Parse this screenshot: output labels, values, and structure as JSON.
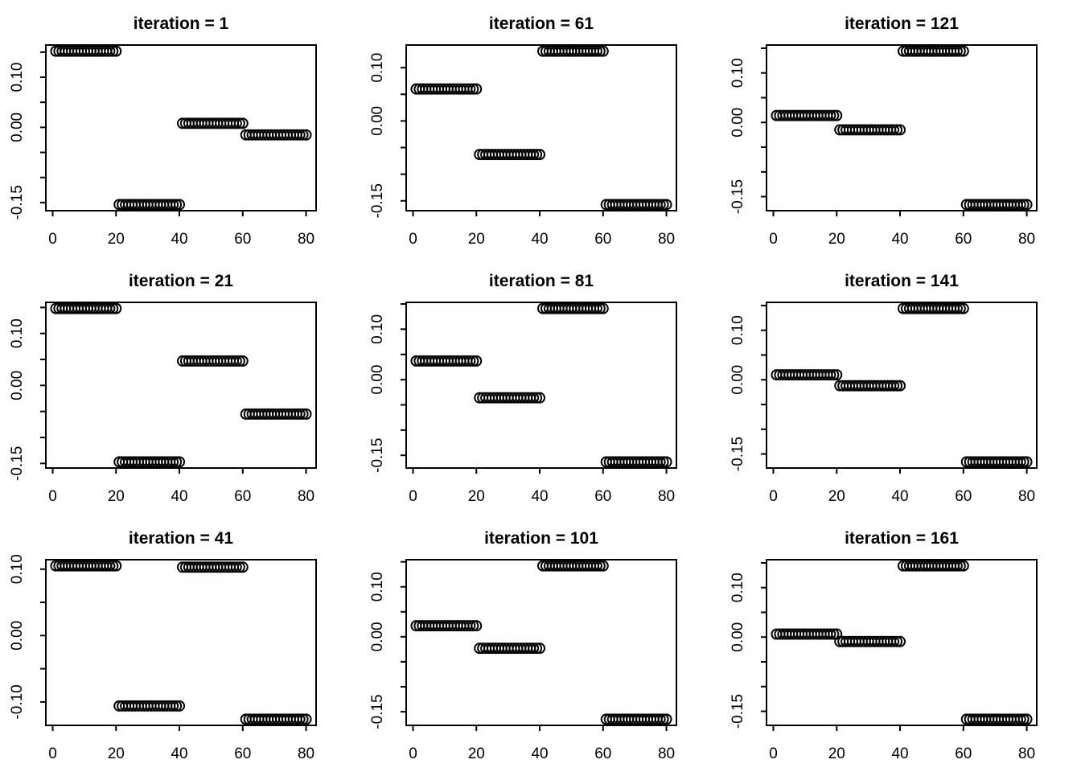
{
  "figure": {
    "background_color": "#ffffff",
    "draw_color": "#000000",
    "marker": "open-circle",
    "grid": {
      "rows": 3,
      "cols": 3
    }
  },
  "chart_data": [
    {
      "type": "scatter",
      "title": "iteration = 1",
      "iteration": 1,
      "xlim": [
        1,
        80
      ],
      "x_ticks": [
        0,
        20,
        40,
        60,
        80
      ],
      "x_tick_labels": [
        "0",
        "20",
        "40",
        "60",
        "80"
      ],
      "y_ticks": [
        0.15,
        0.1,
        0.05,
        0.0,
        -0.05,
        -0.1,
        -0.15
      ],
      "y_tick_labels": [
        "",
        "0.10",
        "",
        "0.00",
        "",
        "",
        "-0.15"
      ],
      "points_per_segment": 20,
      "segments": [
        {
          "x_start": 1,
          "x_end": 20,
          "y": 0.152
        },
        {
          "x_start": 21,
          "x_end": 40,
          "y": -0.154
        },
        {
          "x_start": 41,
          "x_end": 60,
          "y": 0.008
        },
        {
          "x_start": 61,
          "x_end": 80,
          "y": -0.015
        }
      ]
    },
    {
      "type": "scatter",
      "title": "iteration = 61",
      "iteration": 61,
      "xlim": [
        1,
        80
      ],
      "x_ticks": [
        0,
        20,
        40,
        60,
        80
      ],
      "x_tick_labels": [
        "0",
        "20",
        "40",
        "60",
        "80"
      ],
      "y_ticks": [
        0.1,
        0.05,
        0.0,
        -0.05,
        -0.1,
        -0.15
      ],
      "y_tick_labels": [
        "0.10",
        "",
        "0.00",
        "",
        "",
        "-0.15"
      ],
      "points_per_segment": 20,
      "segments": [
        {
          "x_start": 1,
          "x_end": 20,
          "y": 0.06
        },
        {
          "x_start": 21,
          "x_end": 40,
          "y": -0.063
        },
        {
          "x_start": 41,
          "x_end": 60,
          "y": 0.131
        },
        {
          "x_start": 61,
          "x_end": 80,
          "y": -0.157
        }
      ]
    },
    {
      "type": "scatter",
      "title": "iteration = 121",
      "iteration": 121,
      "xlim": [
        1,
        80
      ],
      "x_ticks": [
        0,
        20,
        40,
        60,
        80
      ],
      "x_tick_labels": [
        "0",
        "20",
        "40",
        "60",
        "80"
      ],
      "y_ticks": [
        0.15,
        0.1,
        0.05,
        0.0,
        -0.05,
        -0.1,
        -0.15
      ],
      "y_tick_labels": [
        "",
        "0.10",
        "",
        "0.00",
        "",
        "",
        "-0.15"
      ],
      "points_per_segment": 20,
      "segments": [
        {
          "x_start": 1,
          "x_end": 20,
          "y": 0.014
        },
        {
          "x_start": 21,
          "x_end": 40,
          "y": -0.015
        },
        {
          "x_start": 41,
          "x_end": 60,
          "y": 0.144
        },
        {
          "x_start": 61,
          "x_end": 80,
          "y": -0.166
        }
      ]
    },
    {
      "type": "scatter",
      "title": "iteration = 21",
      "iteration": 21,
      "xlim": [
        1,
        80
      ],
      "x_ticks": [
        0,
        20,
        40,
        60,
        80
      ],
      "x_tick_labels": [
        "0",
        "20",
        "40",
        "60",
        "80"
      ],
      "y_ticks": [
        0.15,
        0.1,
        0.05,
        0.0,
        -0.05,
        -0.1,
        -0.15
      ],
      "y_tick_labels": [
        "",
        "0.10",
        "",
        "0.00",
        "",
        "",
        "-0.15"
      ],
      "points_per_segment": 20,
      "segments": [
        {
          "x_start": 1,
          "x_end": 20,
          "y": 0.148
        },
        {
          "x_start": 21,
          "x_end": 40,
          "y": -0.147
        },
        {
          "x_start": 41,
          "x_end": 60,
          "y": 0.047
        },
        {
          "x_start": 61,
          "x_end": 80,
          "y": -0.055
        }
      ]
    },
    {
      "type": "scatter",
      "title": "iteration = 81",
      "iteration": 81,
      "xlim": [
        1,
        80
      ],
      "x_ticks": [
        0,
        20,
        40,
        60,
        80
      ],
      "x_tick_labels": [
        "0",
        "20",
        "40",
        "60",
        "80"
      ],
      "y_ticks": [
        0.15,
        0.1,
        0.05,
        0.0,
        -0.05,
        -0.1,
        -0.15
      ],
      "y_tick_labels": [
        "",
        "0.10",
        "",
        "0.00",
        "",
        "",
        "-0.15"
      ],
      "points_per_segment": 20,
      "segments": [
        {
          "x_start": 1,
          "x_end": 20,
          "y": 0.037
        },
        {
          "x_start": 21,
          "x_end": 40,
          "y": -0.036
        },
        {
          "x_start": 41,
          "x_end": 60,
          "y": 0.141
        },
        {
          "x_start": 61,
          "x_end": 80,
          "y": -0.163
        }
      ]
    },
    {
      "type": "scatter",
      "title": "iteration = 141",
      "iteration": 141,
      "xlim": [
        1,
        80
      ],
      "x_ticks": [
        0,
        20,
        40,
        60,
        80
      ],
      "x_tick_labels": [
        "0",
        "20",
        "40",
        "60",
        "80"
      ],
      "y_ticks": [
        0.15,
        0.1,
        0.05,
        0.0,
        -0.05,
        -0.1,
        -0.15
      ],
      "y_tick_labels": [
        "",
        "0.10",
        "",
        "0.00",
        "",
        "",
        "-0.15"
      ],
      "points_per_segment": 20,
      "segments": [
        {
          "x_start": 1,
          "x_end": 20,
          "y": 0.01
        },
        {
          "x_start": 21,
          "x_end": 40,
          "y": -0.012
        },
        {
          "x_start": 41,
          "x_end": 60,
          "y": 0.144
        },
        {
          "x_start": 61,
          "x_end": 80,
          "y": -0.166
        }
      ]
    },
    {
      "type": "scatter",
      "title": "iteration = 41",
      "iteration": 41,
      "xlim": [
        1,
        80
      ],
      "x_ticks": [
        0,
        20,
        40,
        60,
        80
      ],
      "x_tick_labels": [
        "0",
        "20",
        "40",
        "60",
        "80"
      ],
      "y_ticks": [
        0.1,
        0.05,
        0.0,
        -0.05,
        -0.1
      ],
      "y_tick_labels": [
        "0.10",
        "",
        "0.00",
        "",
        "-0.10"
      ],
      "points_per_segment": 20,
      "segments": [
        {
          "x_start": 1,
          "x_end": 20,
          "y": 0.105
        },
        {
          "x_start": 21,
          "x_end": 40,
          "y": -0.106
        },
        {
          "x_start": 41,
          "x_end": 60,
          "y": 0.103
        },
        {
          "x_start": 61,
          "x_end": 80,
          "y": -0.126
        }
      ]
    },
    {
      "type": "scatter",
      "title": "iteration = 101",
      "iteration": 101,
      "xlim": [
        1,
        80
      ],
      "x_ticks": [
        0,
        20,
        40,
        60,
        80
      ],
      "x_tick_labels": [
        "0",
        "20",
        "40",
        "60",
        "80"
      ],
      "y_ticks": [
        0.15,
        0.1,
        0.05,
        0.0,
        -0.05,
        -0.1,
        -0.15
      ],
      "y_tick_labels": [
        "",
        "0.10",
        "",
        "0.00",
        "",
        "",
        "-0.15"
      ],
      "points_per_segment": 20,
      "segments": [
        {
          "x_start": 1,
          "x_end": 20,
          "y": 0.022
        },
        {
          "x_start": 21,
          "x_end": 40,
          "y": -0.023
        },
        {
          "x_start": 41,
          "x_end": 60,
          "y": 0.142
        },
        {
          "x_start": 61,
          "x_end": 80,
          "y": -0.165
        }
      ]
    },
    {
      "type": "scatter",
      "title": "iteration = 161",
      "iteration": 161,
      "xlim": [
        1,
        80
      ],
      "x_ticks": [
        0,
        20,
        40,
        60,
        80
      ],
      "x_tick_labels": [
        "0",
        "20",
        "40",
        "60",
        "80"
      ],
      "y_ticks": [
        0.15,
        0.1,
        0.05,
        0.0,
        -0.05,
        -0.1,
        -0.15
      ],
      "y_tick_labels": [
        "",
        "0.10",
        "",
        "0.00",
        "",
        "",
        "-0.15"
      ],
      "points_per_segment": 20,
      "segments": [
        {
          "x_start": 1,
          "x_end": 20,
          "y": 0.006
        },
        {
          "x_start": 21,
          "x_end": 40,
          "y": -0.009
        },
        {
          "x_start": 41,
          "x_end": 60,
          "y": 0.144
        },
        {
          "x_start": 61,
          "x_end": 80,
          "y": -0.166
        }
      ]
    }
  ]
}
